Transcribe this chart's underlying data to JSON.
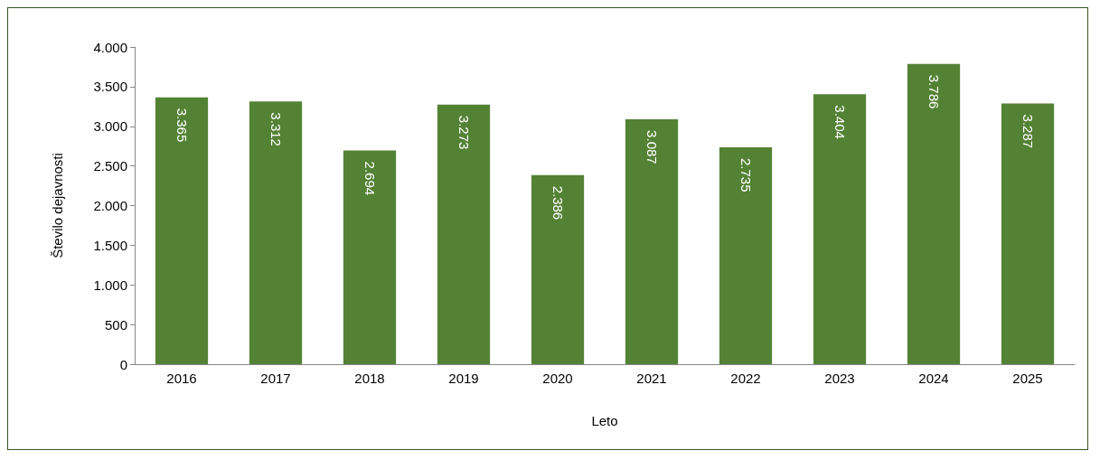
{
  "chart_data": {
    "type": "bar",
    "xlabel": "Leto",
    "ylabel": "Število dejavnosti",
    "categories": [
      "2016",
      "2017",
      "2018",
      "2019",
      "2020",
      "2021",
      "2022",
      "2023",
      "2024",
      "2025"
    ],
    "values": [
      3365,
      3312,
      2694,
      3273,
      2386,
      3087,
      2735,
      3404,
      3786,
      3287
    ],
    "value_labels": [
      "3.365",
      "3.312",
      "2.694",
      "3.273",
      "2.386",
      "3.087",
      "2.735",
      "3.404",
      "3.786",
      "3.287"
    ],
    "color": "#548235",
    "ylim": [
      0,
      4000
    ],
    "yticks": [
      0,
      {
        "value": 500,
        "label": "500"
      },
      {
        "value": 1000,
        "label": "1.000"
      },
      {
        "value": 1500,
        "label": "1.500"
      },
      {
        "value": 2000,
        "label": "2.000"
      },
      {
        "value": 2500,
        "label": "2.500"
      },
      {
        "value": 3000,
        "label": "3.000"
      },
      {
        "value": 3500,
        "label": "3.500"
      },
      {
        "value": 4000,
        "label": "4.000"
      }
    ],
    "grid": false
  }
}
